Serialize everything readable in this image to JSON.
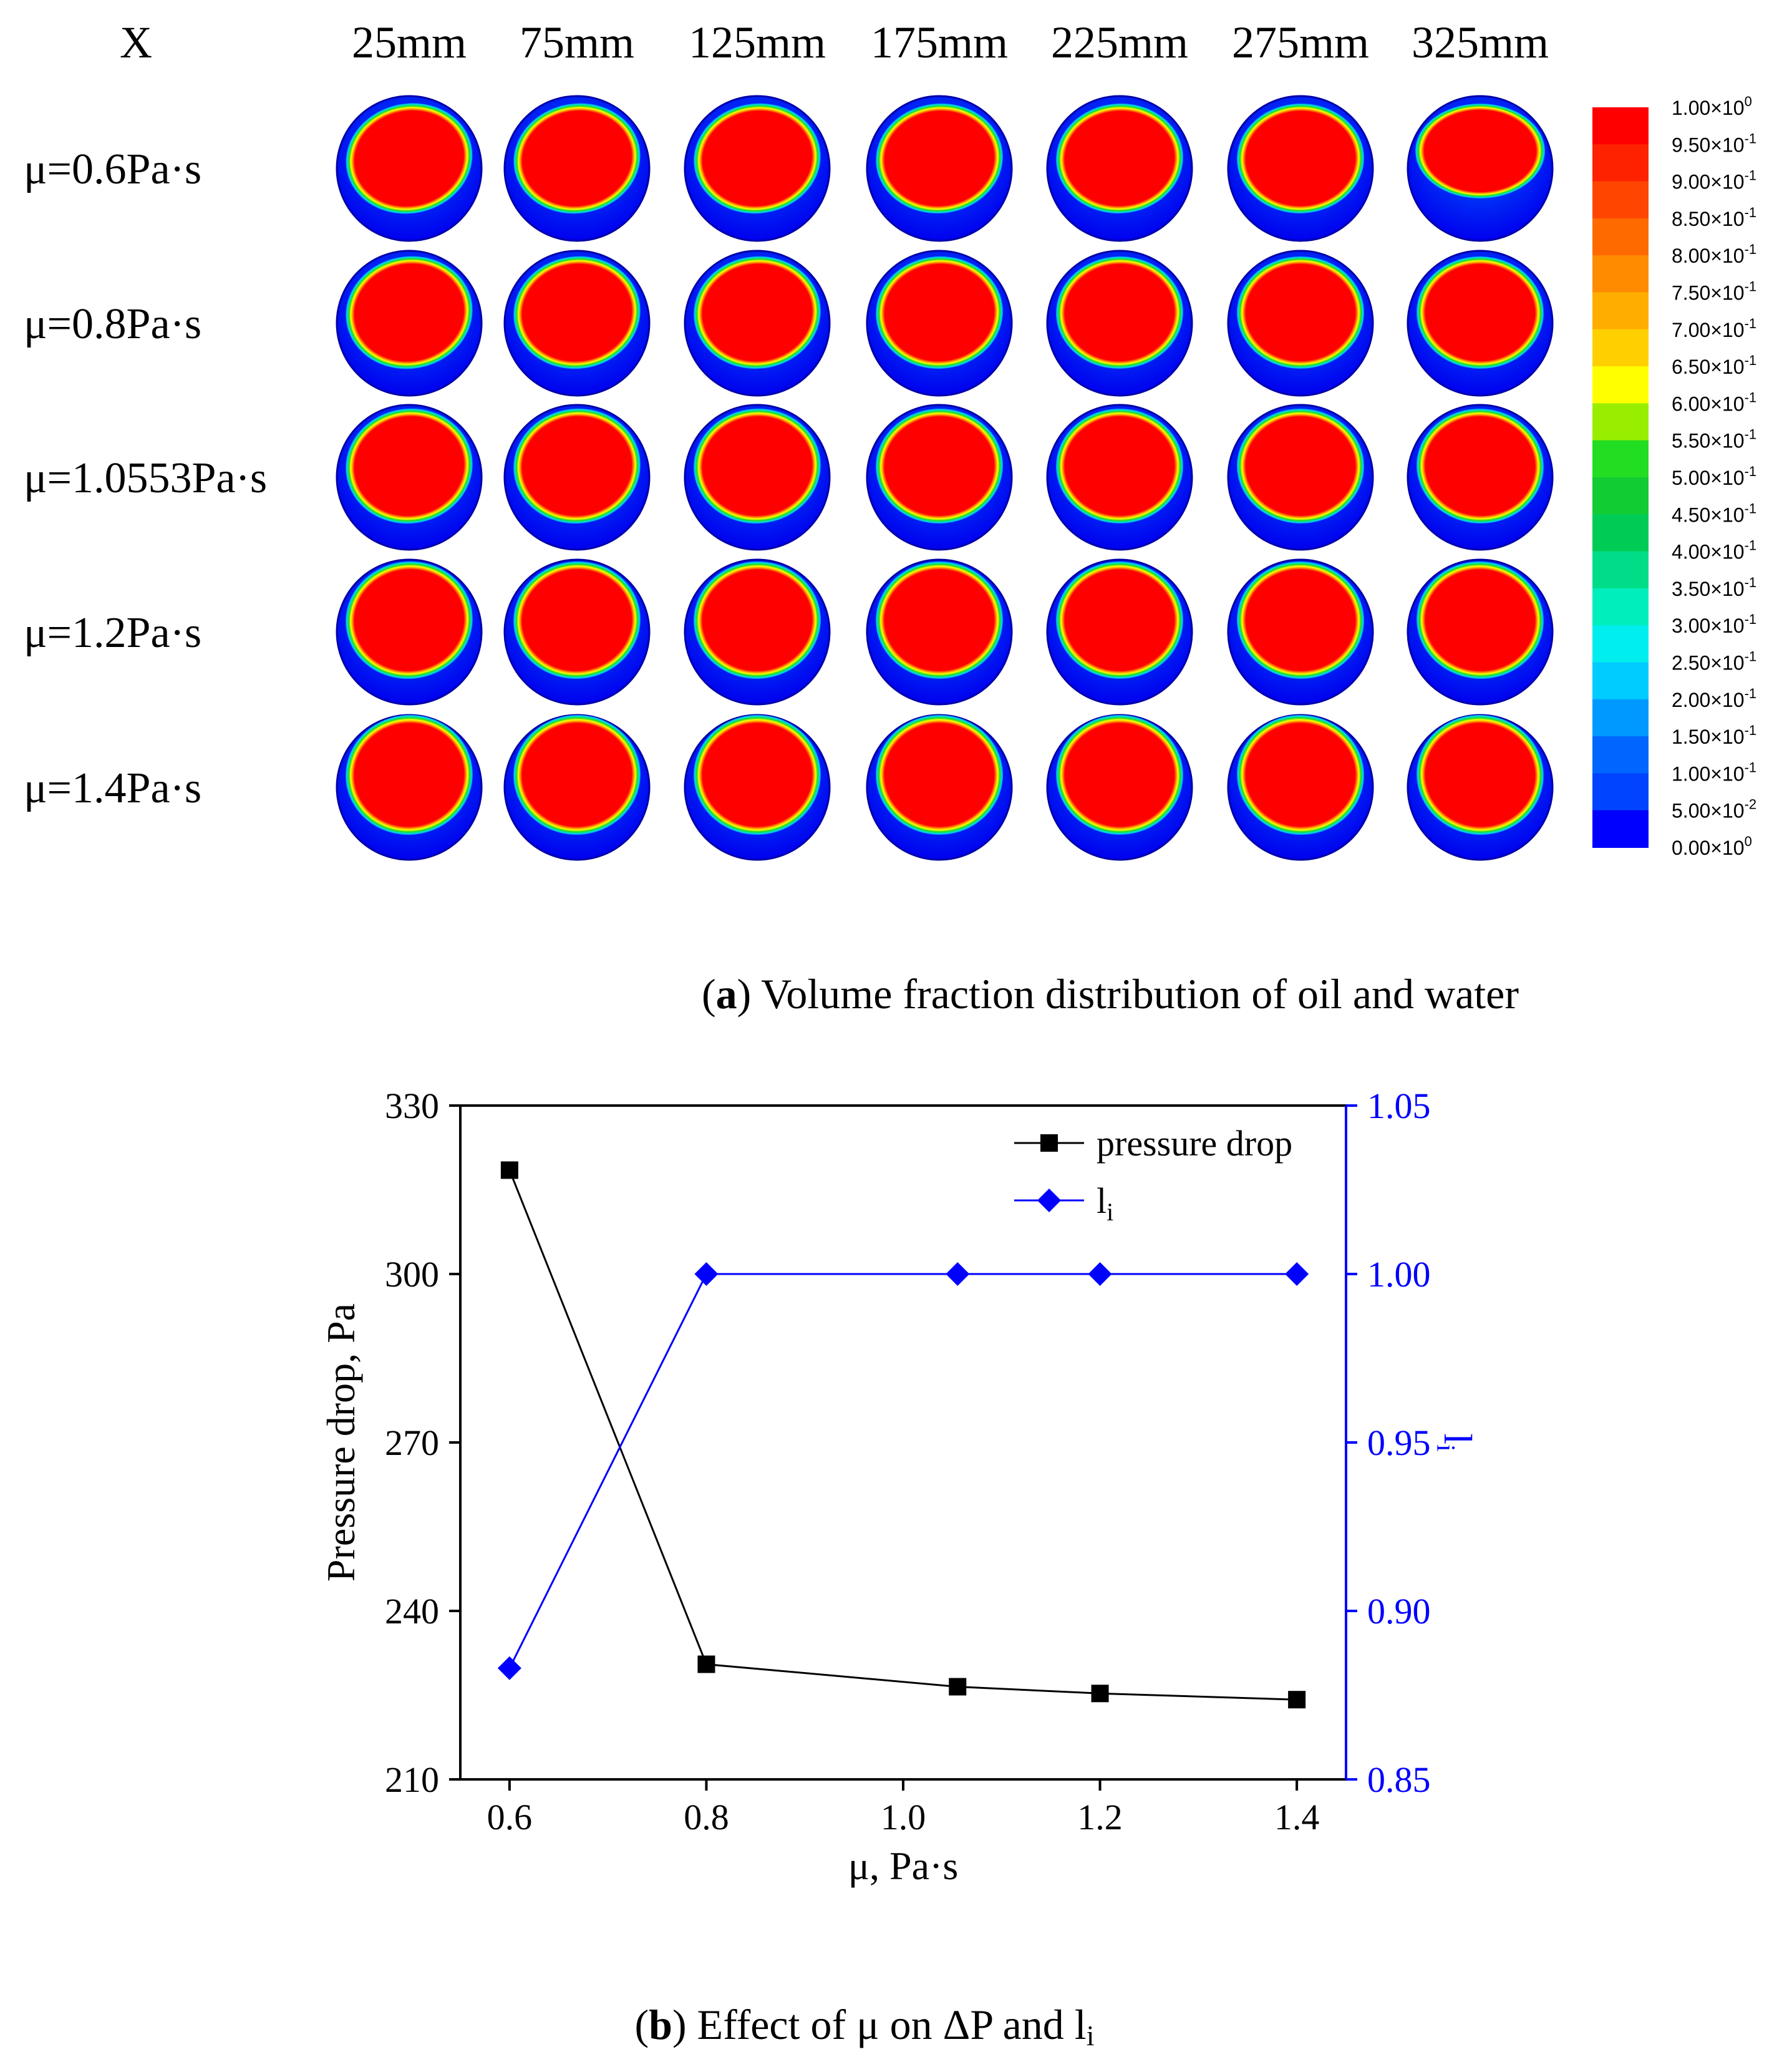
{
  "panel_a": {
    "corner_label": "X",
    "columns": [
      "25mm",
      "75mm",
      "125mm",
      "175mm",
      "225mm",
      "275mm",
      "325mm"
    ],
    "rows": [
      "μ=0.6Pa·s",
      "μ=0.8Pa·s",
      "μ=1.0553Pa·s",
      "μ=1.2Pa·s",
      "μ=1.4Pa·s"
    ],
    "colorbar": {
      "ticks": [
        {
          "mant": "1.00×10",
          "exp": "0"
        },
        {
          "mant": "9.50×10",
          "exp": "-1"
        },
        {
          "mant": "9.00×10",
          "exp": "-1"
        },
        {
          "mant": "8.50×10",
          "exp": "-1"
        },
        {
          "mant": "8.00×10",
          "exp": "-1"
        },
        {
          "mant": "7.50×10",
          "exp": "-1"
        },
        {
          "mant": "7.00×10",
          "exp": "-1"
        },
        {
          "mant": "6.50×10",
          "exp": "-1"
        },
        {
          "mant": "6.00×10",
          "exp": "-1"
        },
        {
          "mant": "5.50×10",
          "exp": "-1"
        },
        {
          "mant": "5.00×10",
          "exp": "-1"
        },
        {
          "mant": "4.50×10",
          "exp": "-1"
        },
        {
          "mant": "4.00×10",
          "exp": "-1"
        },
        {
          "mant": "3.50×10",
          "exp": "-1"
        },
        {
          "mant": "3.00×10",
          "exp": "-1"
        },
        {
          "mant": "2.50×10",
          "exp": "-1"
        },
        {
          "mant": "2.00×10",
          "exp": "-1"
        },
        {
          "mant": "1.50×10",
          "exp": "-1"
        },
        {
          "mant": "1.00×10",
          "exp": "-1"
        },
        {
          "mant": "5.00×10",
          "exp": "-2"
        },
        {
          "mant": "0.00×10",
          "exp": "0"
        }
      ],
      "colors": [
        "#ff0000",
        "#ff2200",
        "#ff4500",
        "#ff6a00",
        "#ff8c00",
        "#ffae00",
        "#ffd000",
        "#ffff00",
        "#99ee00",
        "#22dd22",
        "#11cc33",
        "#00cc55",
        "#00dd88",
        "#00eebb",
        "#00eeee",
        "#00ccff",
        "#0099ff",
        "#0066ff",
        "#0044ff",
        "#0000ff"
      ]
    },
    "caption_bold": "a",
    "caption_text": " Volume fraction distribution of oil and water"
  },
  "chart_data": {
    "type": "line",
    "title": "",
    "x": [
      0.6,
      0.8,
      1.0553,
      1.2,
      1.4
    ],
    "xlabel": "μ, Pa·s",
    "xlim": [
      0.55,
      1.45
    ],
    "xticks": [
      "0.6",
      "0.8",
      "1.0",
      "1.2",
      "1.4"
    ],
    "xtick_values": [
      0.6,
      0.8,
      1.0,
      1.2,
      1.4
    ],
    "ylabel": "Pressure drop, Pa",
    "ylim": [
      210,
      330
    ],
    "yticks": [
      "210",
      "240",
      "270",
      "300",
      "330"
    ],
    "ytick_values": [
      210,
      240,
      270,
      300,
      330
    ],
    "y2label_main": "l",
    "y2label_sub": "i",
    "y2lim": [
      0.85,
      1.05
    ],
    "y2ticks": [
      "0.85",
      "0.90",
      "0.95",
      "1.00",
      "1.05"
    ],
    "y2tick_values": [
      0.85,
      0.9,
      0.95,
      1.0,
      1.05
    ],
    "series": [
      {
        "name": "pressure drop",
        "legend_main": "pressure drop",
        "legend_sub": "",
        "axis": "left",
        "marker": "square",
        "color": "#000000",
        "values": [
          318.5,
          230.5,
          226.5,
          225.3,
          224.2
        ]
      },
      {
        "name": "li",
        "legend_main": "l",
        "legend_sub": "i",
        "axis": "right",
        "marker": "diamond",
        "color": "#0000ff",
        "values": [
          0.883,
          1.0,
          1.0,
          1.0,
          1.0
        ]
      }
    ],
    "legend_position": "top-right"
  },
  "panel_b": {
    "caption_bold": "b",
    "caption_text": " Effect of μ on ΔP and l",
    "caption_sub": "i"
  }
}
